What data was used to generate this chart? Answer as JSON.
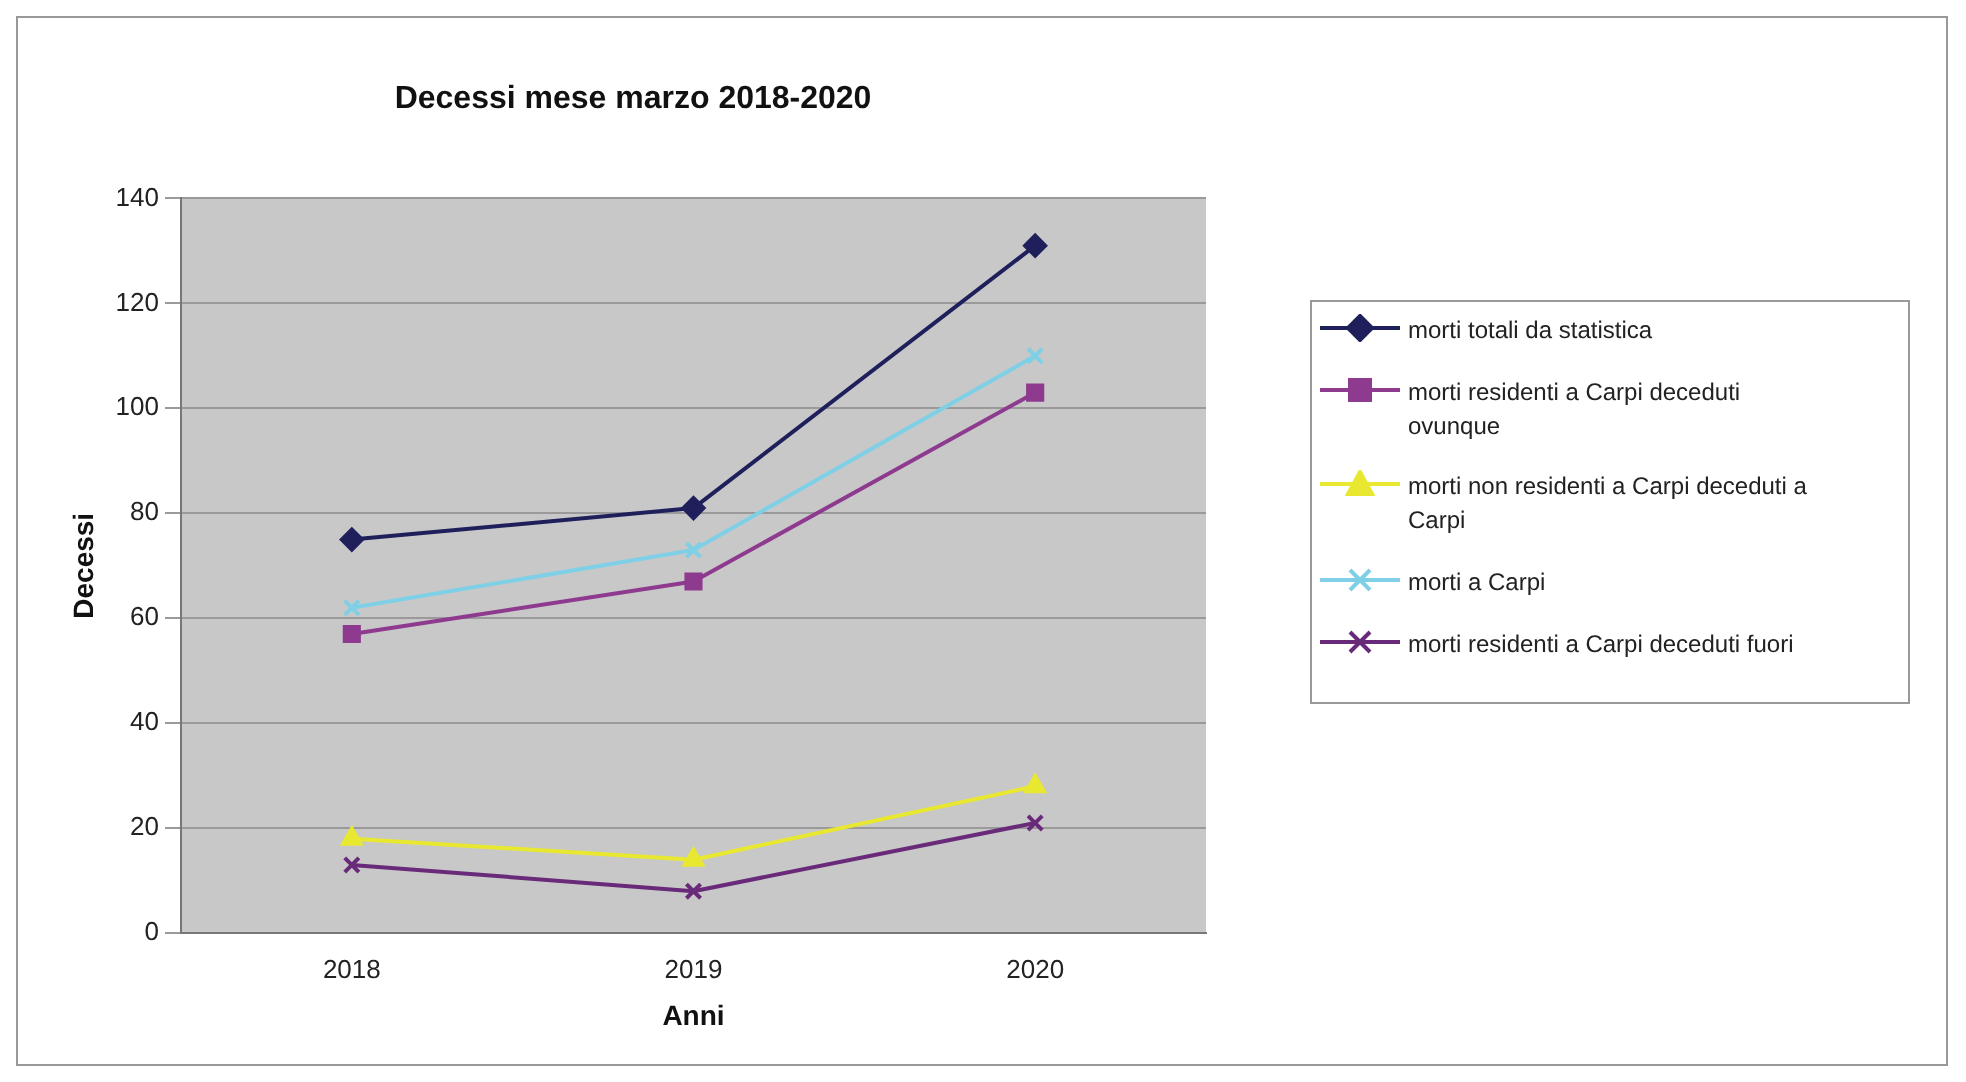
{
  "chart_data": {
    "type": "line",
    "title": "Decessi mese marzo 2018-2020",
    "xlabel": "Anni",
    "ylabel": "Decessi",
    "categories": [
      "2018",
      "2019",
      "2020"
    ],
    "series": [
      {
        "name": "morti totali da statistica",
        "color": "#1f1f5c",
        "values": [
          75,
          81,
          131
        ],
        "marker": "diamond"
      },
      {
        "name": "morti residenti a Carpi deceduti ovunque",
        "color": "#8e3a8e",
        "values": [
          57,
          67,
          103
        ],
        "marker": "square"
      },
      {
        "name": "morti non residenti a Carpi deceduti a Carpi",
        "color": "#e8e830",
        "values": [
          18,
          14,
          28
        ],
        "marker": "triangle"
      },
      {
        "name": "morti a Carpi",
        "color": "#7fd0e6",
        "values": [
          62,
          73,
          110
        ],
        "marker": "cross"
      },
      {
        "name": "morti residenti a Carpi deceduti fuori",
        "color": "#6a2a7a",
        "values": [
          13,
          8,
          21
        ],
        "marker": "cross"
      }
    ],
    "ylim": [
      0,
      140
    ],
    "yticks": [
      0,
      20,
      40,
      60,
      80,
      100,
      120,
      140
    ],
    "grid": "y",
    "legend": "right"
  }
}
